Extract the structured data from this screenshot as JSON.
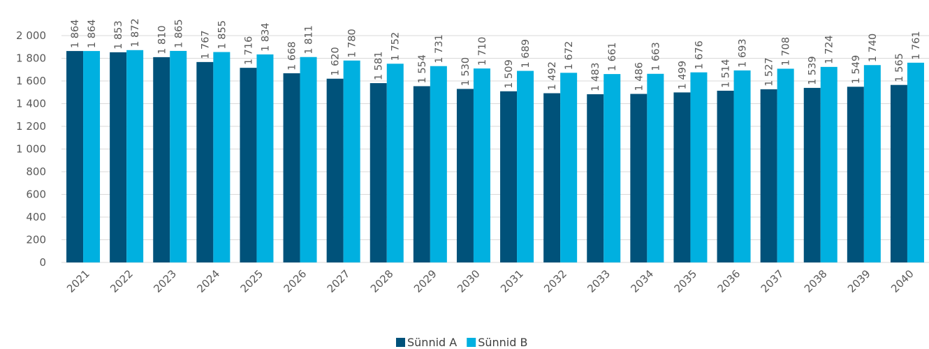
{
  "chart_data": {
    "type": "bar",
    "categories": [
      "2021",
      "2022",
      "2023",
      "2024",
      "2025",
      "2026",
      "2027",
      "2028",
      "2029",
      "2030",
      "2031",
      "2032",
      "2033",
      "2034",
      "2035",
      "2036",
      "2037",
      "2038",
      "2039",
      "2040"
    ],
    "series": [
      {
        "name": "Sünnid A",
        "color": "#00527a",
        "values": [
          1864,
          1853,
          1810,
          1767,
          1716,
          1668,
          1620,
          1581,
          1554,
          1530,
          1509,
          1492,
          1483,
          1486,
          1499,
          1514,
          1527,
          1539,
          1549,
          1565
        ],
        "labels": [
          "1 864",
          "1 853",
          "1 810",
          "1 767",
          "1 716",
          "1 668",
          "1 620",
          "1 581",
          "1 554",
          "1 530",
          "1 509",
          "1 492",
          "1 483",
          "1 486",
          "1 499",
          "1 514",
          "1 527",
          "1 539",
          "1 549",
          "1 565"
        ]
      },
      {
        "name": "Sünnid B",
        "color": "#00b0e0",
        "values": [
          1864,
          1872,
          1865,
          1855,
          1834,
          1811,
          1780,
          1752,
          1731,
          1710,
          1689,
          1672,
          1661,
          1663,
          1676,
          1693,
          1708,
          1724,
          1740,
          1761
        ],
        "labels": [
          "1 864",
          "1 872",
          "1 865",
          "1 855",
          "1 834",
          "1 811",
          "1 780",
          "1 752",
          "1 731",
          "1 710",
          "1 689",
          "1 672",
          "1 661",
          "1 663",
          "1 676",
          "1 693",
          "1 708",
          "1 724",
          "1 740",
          "1 761"
        ]
      }
    ],
    "y_ticks": [
      0,
      200,
      400,
      600,
      800,
      1000,
      1200,
      1400,
      1600,
      1800,
      2000
    ],
    "y_tick_labels": [
      "0",
      "200",
      "400",
      "600",
      "800",
      "1 000",
      "1 200",
      "1 400",
      "1 600",
      "1 800",
      "2 000"
    ],
    "ylim": [
      0,
      2000
    ],
    "grid": true,
    "legend_position": "bottom",
    "title": "",
    "xlabel": "",
    "ylabel": ""
  }
}
